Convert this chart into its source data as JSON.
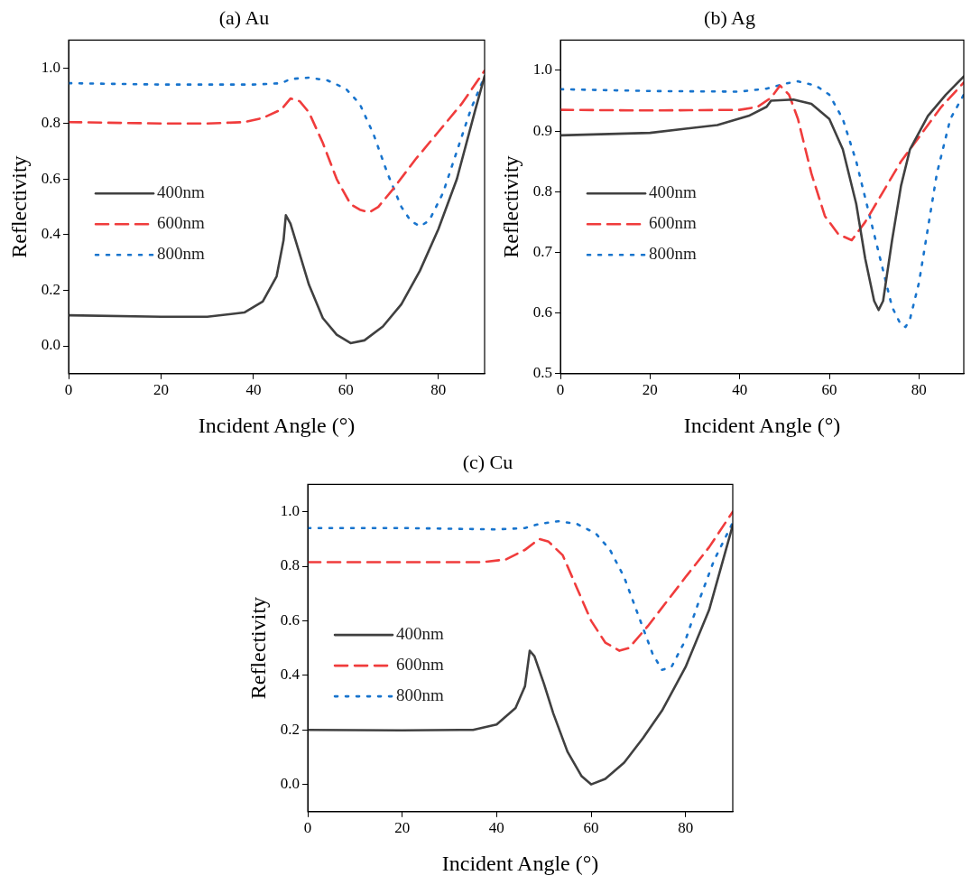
{
  "chart_data": [
    {
      "type": "line",
      "title": "(a) Au",
      "xlabel": "Incident Angle (°)",
      "ylabel": "Reflectivity",
      "xlim": [
        0,
        90
      ],
      "xticks": [
        0,
        20,
        40,
        60,
        80
      ],
      "ylim": [
        -0.1,
        1.1
      ],
      "yticks": [
        {
          "value": 0,
          "label": "0.0"
        },
        {
          "value": 0.2,
          "label": "0.2"
        },
        {
          "value": 0.4,
          "label": "0.4"
        },
        {
          "value": 0.6,
          "label": "0.6"
        },
        {
          "value": 0.8,
          "label": "0.8"
        },
        {
          "value": 1,
          "label": "1.0"
        }
      ],
      "legend": "center left",
      "marker": "none",
      "series": [
        {
          "name": "400nm",
          "color": "#404040",
          "line_style": "solid",
          "x": [
            0,
            20,
            30,
            38,
            42,
            45,
            46.5,
            47,
            48,
            50,
            52,
            55,
            58,
            61,
            64,
            68,
            72,
            76,
            80,
            84,
            88,
            90
          ],
          "values": [
            0.11,
            0.105,
            0.105,
            0.12,
            0.16,
            0.25,
            0.38,
            0.47,
            0.44,
            0.33,
            0.22,
            0.1,
            0.04,
            0.01,
            0.02,
            0.07,
            0.15,
            0.27,
            0.42,
            0.6,
            0.85,
            0.97
          ]
        },
        {
          "name": "600nm",
          "color": "#f03c3c",
          "line_style": "dashed",
          "x": [
            0,
            20,
            30,
            38,
            42,
            46,
            48,
            50,
            52,
            55,
            58,
            61,
            63,
            65,
            67,
            70,
            75,
            80,
            85,
            90
          ],
          "values": [
            0.805,
            0.8,
            0.8,
            0.805,
            0.82,
            0.85,
            0.89,
            0.88,
            0.84,
            0.73,
            0.6,
            0.51,
            0.49,
            0.48,
            0.5,
            0.56,
            0.67,
            0.77,
            0.87,
            0.99
          ]
        },
        {
          "name": "800nm",
          "color": "#1874cd",
          "line_style": "dotted",
          "x": [
            0,
            20,
            40,
            46,
            48,
            52,
            56,
            60,
            63,
            66,
            69,
            72,
            74,
            76,
            78,
            81,
            84,
            87,
            90
          ],
          "values": [
            0.945,
            0.94,
            0.94,
            0.945,
            0.96,
            0.965,
            0.955,
            0.925,
            0.87,
            0.76,
            0.62,
            0.5,
            0.45,
            0.43,
            0.45,
            0.55,
            0.7,
            0.85,
            0.97
          ]
        }
      ]
    },
    {
      "type": "line",
      "title": "(b) Ag",
      "xlabel": "Incident Angle (°)",
      "ylabel": "Reflectivity",
      "xlim": [
        0,
        90
      ],
      "xticks": [
        0,
        20,
        40,
        60,
        80
      ],
      "ylim": [
        0.5,
        1.05
      ],
      "yticks": [
        {
          "value": 0.5,
          "label": "0.5"
        },
        {
          "value": 0.6,
          "label": "0.6"
        },
        {
          "value": 0.7,
          "label": "0.7"
        },
        {
          "value": 0.8,
          "label": "0.8"
        },
        {
          "value": 0.9,
          "label": "0.9"
        },
        {
          "value": 1,
          "label": "1.0"
        }
      ],
      "legend": "center left",
      "marker": "none",
      "series": [
        {
          "name": "400nm",
          "color": "#404040",
          "line_style": "solid",
          "x": [
            0,
            20,
            35,
            42,
            46,
            47,
            52,
            56,
            60,
            63,
            66,
            68,
            70,
            71,
            72,
            74,
            76,
            78,
            82,
            86,
            90
          ],
          "values": [
            0.893,
            0.897,
            0.91,
            0.925,
            0.94,
            0.95,
            0.952,
            0.945,
            0.92,
            0.87,
            0.78,
            0.69,
            0.62,
            0.605,
            0.62,
            0.72,
            0.81,
            0.87,
            0.925,
            0.96,
            0.99
          ]
        },
        {
          "name": "600nm",
          "color": "#f03c3c",
          "line_style": "dashed",
          "x": [
            0,
            20,
            40,
            44,
            47,
            49,
            51,
            53,
            56,
            59,
            62,
            65,
            68,
            72,
            76,
            80,
            85,
            90
          ],
          "values": [
            0.935,
            0.934,
            0.935,
            0.94,
            0.955,
            0.975,
            0.96,
            0.92,
            0.83,
            0.76,
            0.73,
            0.72,
            0.75,
            0.8,
            0.85,
            0.89,
            0.94,
            0.98
          ]
        },
        {
          "name": "800nm",
          "color": "#1874cd",
          "line_style": "dotted",
          "x": [
            0,
            20,
            40,
            46,
            50,
            53,
            57,
            60,
            63,
            66,
            69,
            72,
            74,
            76,
            77,
            78,
            80,
            82,
            84,
            87,
            90
          ],
          "values": [
            0.969,
            0.966,
            0.965,
            0.97,
            0.978,
            0.982,
            0.975,
            0.96,
            0.92,
            0.85,
            0.76,
            0.67,
            0.61,
            0.58,
            0.577,
            0.59,
            0.65,
            0.74,
            0.83,
            0.92,
            0.96
          ]
        }
      ]
    },
    {
      "type": "line",
      "title": "(c) Cu",
      "xlabel": "Incident Angle (°)",
      "ylabel": "Reflectivity",
      "xlim": [
        0,
        90
      ],
      "xticks": [
        0,
        20,
        40,
        60,
        80
      ],
      "ylim": [
        -0.1,
        1.1
      ],
      "yticks": [
        {
          "value": 0,
          "label": "0.0"
        },
        {
          "value": 0.2,
          "label": "0.2"
        },
        {
          "value": 0.4,
          "label": "0.4"
        },
        {
          "value": 0.6,
          "label": "0.6"
        },
        {
          "value": 0.8,
          "label": "0.8"
        },
        {
          "value": 1,
          "label": "1.0"
        }
      ],
      "legend": "center left",
      "marker": "none",
      "series": [
        {
          "name": "400nm",
          "color": "#404040",
          "line_style": "solid",
          "x": [
            0,
            20,
            35,
            40,
            44,
            46,
            47,
            48,
            50,
            52,
            55,
            58,
            60,
            63,
            67,
            71,
            75,
            80,
            85,
            90
          ],
          "values": [
            0.2,
            0.198,
            0.2,
            0.22,
            0.28,
            0.36,
            0.49,
            0.47,
            0.37,
            0.26,
            0.12,
            0.03,
            0.0,
            0.02,
            0.08,
            0.17,
            0.27,
            0.43,
            0.64,
            0.95
          ]
        },
        {
          "name": "600nm",
          "color": "#f03c3c",
          "line_style": "dashed",
          "x": [
            0,
            20,
            37,
            42,
            46,
            49,
            51,
            54,
            57,
            60,
            63,
            66,
            68,
            72,
            76,
            80,
            85,
            90
          ],
          "values": [
            0.815,
            0.815,
            0.815,
            0.825,
            0.86,
            0.9,
            0.89,
            0.84,
            0.72,
            0.6,
            0.52,
            0.49,
            0.5,
            0.58,
            0.67,
            0.76,
            0.87,
            1.0
          ]
        },
        {
          "name": "800nm",
          "color": "#1874cd",
          "line_style": "dotted",
          "x": [
            0,
            20,
            40,
            46,
            49,
            53,
            57,
            61,
            64,
            67,
            70,
            73,
            75,
            77,
            80,
            83,
            86,
            90
          ],
          "values": [
            0.94,
            0.94,
            0.935,
            0.94,
            0.955,
            0.965,
            0.955,
            0.92,
            0.86,
            0.76,
            0.62,
            0.48,
            0.42,
            0.43,
            0.53,
            0.68,
            0.82,
            0.96
          ]
        }
      ]
    }
  ]
}
